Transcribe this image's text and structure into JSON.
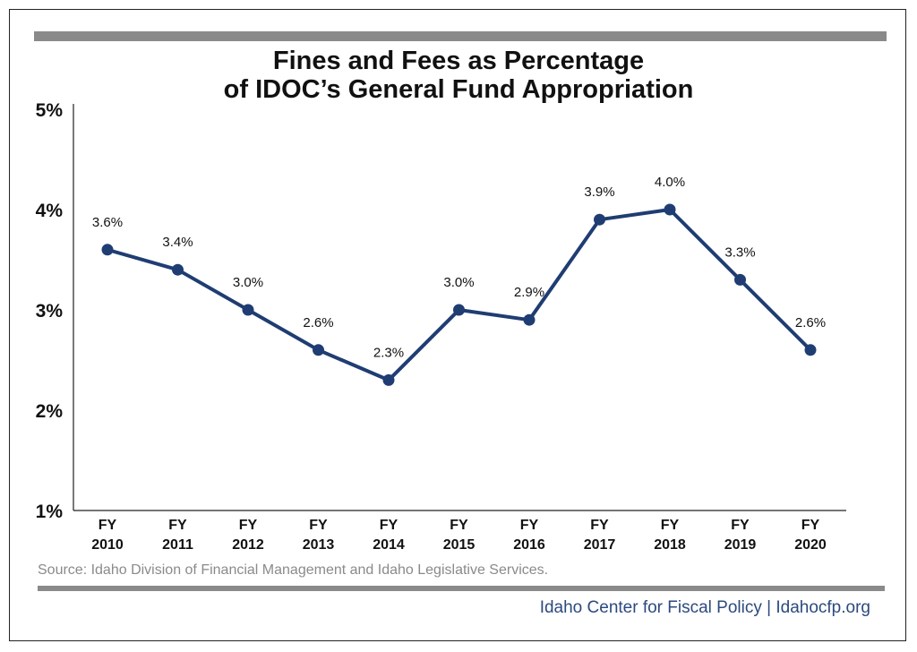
{
  "title_line1": "Fines and Fees as Percentage",
  "title_line2": "of IDOC’s General Fund Appropriation",
  "source": "Source: Idaho Division of Financial Management and Idaho Legislative Services.",
  "credit": "Idaho Center for Fiscal Policy | Idahocfp.org",
  "colors": {
    "line": "#1f3d73",
    "rule": "#8a8a8a",
    "credit": "#2b4a7e"
  },
  "chart_data": {
    "type": "line",
    "title": "Fines and Fees as Percentage of IDOC’s General Fund Appropriation",
    "xlabel": "",
    "ylabel": "",
    "ylim": [
      1,
      5
    ],
    "yticks": [
      1,
      2,
      3,
      4,
      5
    ],
    "ytick_labels": [
      "1%",
      "2%",
      "3%",
      "4%",
      "5%"
    ],
    "grid": false,
    "categories": [
      [
        "FY",
        "2010"
      ],
      [
        "FY",
        "2011"
      ],
      [
        "FY",
        "2012"
      ],
      [
        "FY",
        "2013"
      ],
      [
        "FY",
        "2014"
      ],
      [
        "FY",
        "2015"
      ],
      [
        "FY",
        "2016"
      ],
      [
        "FY",
        "2017"
      ],
      [
        "FY",
        "2018"
      ],
      [
        "FY",
        "2019"
      ],
      [
        "FY",
        "2020"
      ]
    ],
    "series": [
      {
        "values": [
          3.6,
          3.4,
          3.0,
          2.6,
          2.3,
          3.0,
          2.9,
          3.9,
          4.0,
          3.3,
          2.6
        ],
        "labels": [
          "3.6%",
          "3.4%",
          "3.0%",
          "2.6%",
          "2.3%",
          "3.0%",
          "2.9%",
          "3.9%",
          "4.0%",
          "3.3%",
          "2.6%"
        ]
      }
    ]
  }
}
